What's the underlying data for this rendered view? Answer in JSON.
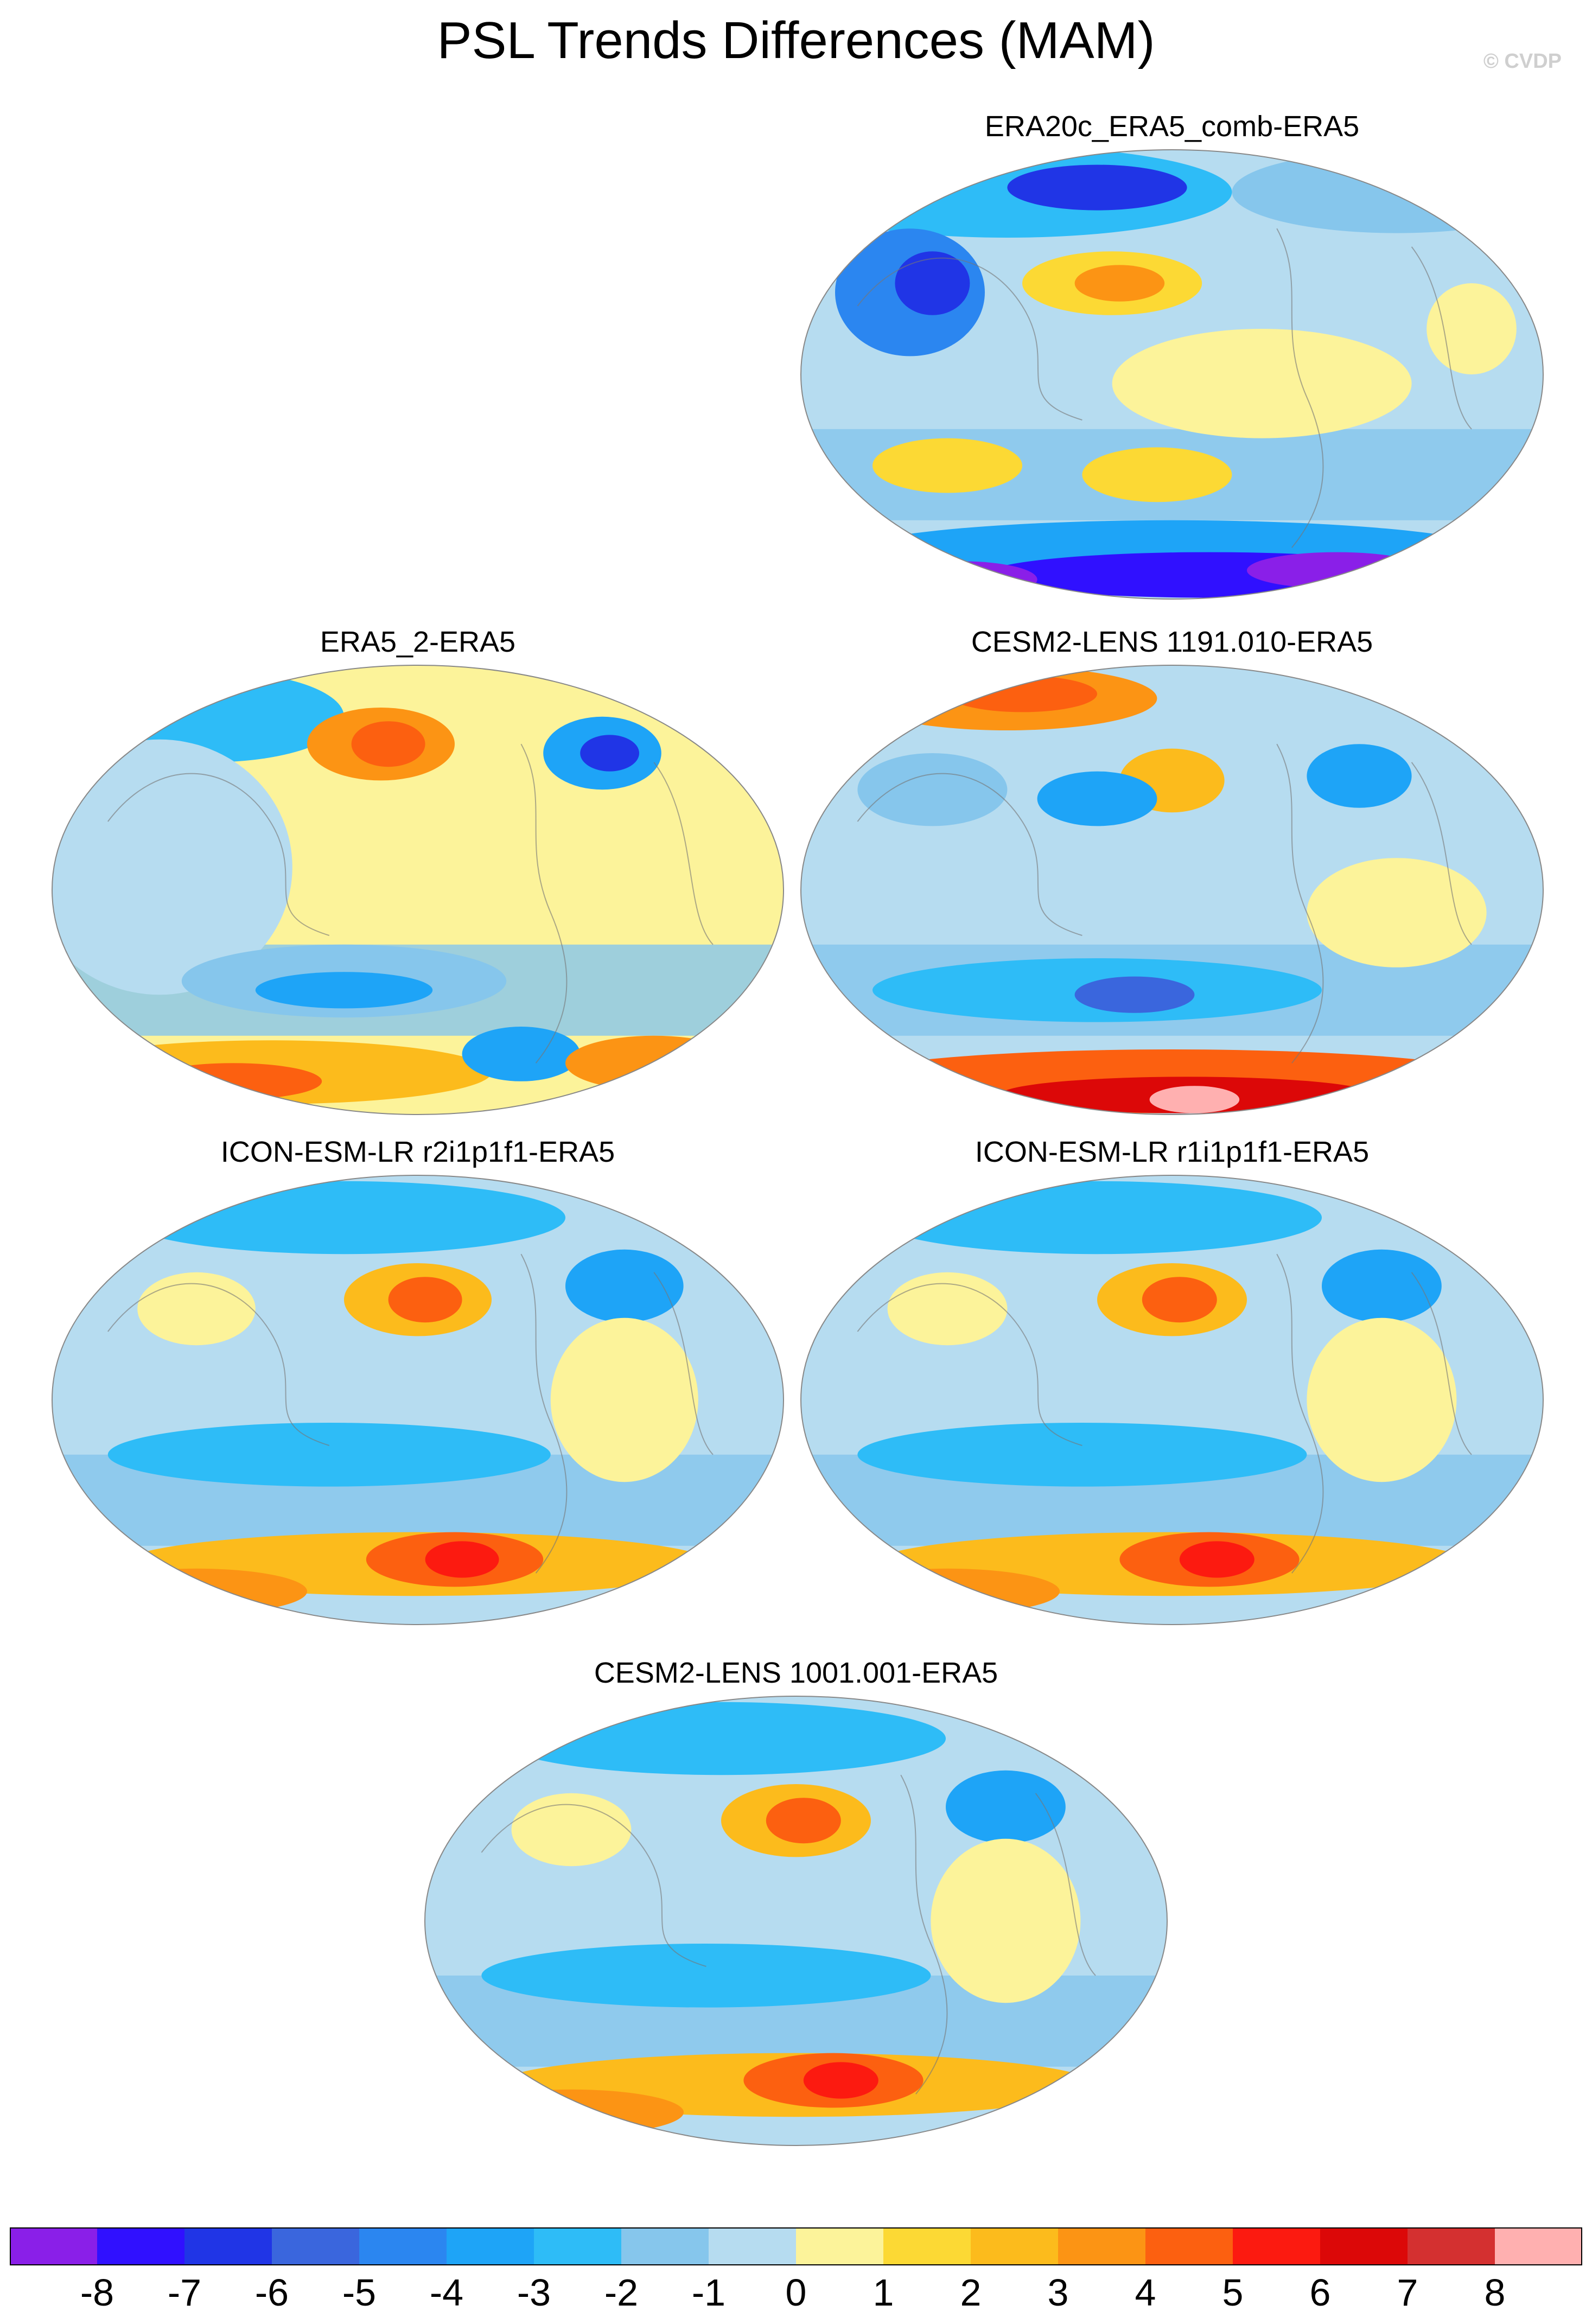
{
  "title": "PSL Trends Differences (MAM)",
  "credit": "© CVDP",
  "panels": [
    {
      "id": "p1",
      "title": "ERA20c_ERA5_comb-ERA5",
      "scheme": "cold"
    },
    {
      "id": "p2",
      "title": "ERA5_2-ERA5",
      "scheme": "mixed-warm-south"
    },
    {
      "id": "p3",
      "title": "CESM2-LENS 1191.010-ERA5",
      "scheme": "hot-south"
    },
    {
      "id": "p4",
      "title": "ICON-ESM-LR r2i1p1f1-ERA5",
      "scheme": "warm-south"
    },
    {
      "id": "p5",
      "title": "ICON-ESM-LR r1i1p1f1-ERA5",
      "scheme": "warm-south"
    },
    {
      "id": "p6",
      "title": "CESM2-LENS 1001.001-ERA5",
      "scheme": "warm-south"
    }
  ],
  "colorbar": {
    "colors": [
      "#8a1fe8",
      "#3010ff",
      "#2035e6",
      "#3a66dd",
      "#2b86f0",
      "#1ea4f7",
      "#2ebcf7",
      "#86c6ec",
      "#b6dcf0",
      "#fcf39a",
      "#fcd934",
      "#fcbb1c",
      "#fc9414",
      "#fc6010",
      "#fc1a10",
      "#dc0808",
      "#d43030",
      "#ffb0b0"
    ],
    "ticks": [
      "-8",
      "-7",
      "-6",
      "-5",
      "-4",
      "-3",
      "-2",
      "-1",
      "0",
      "1",
      "2",
      "3",
      "4",
      "5",
      "6",
      "7",
      "8"
    ]
  }
}
